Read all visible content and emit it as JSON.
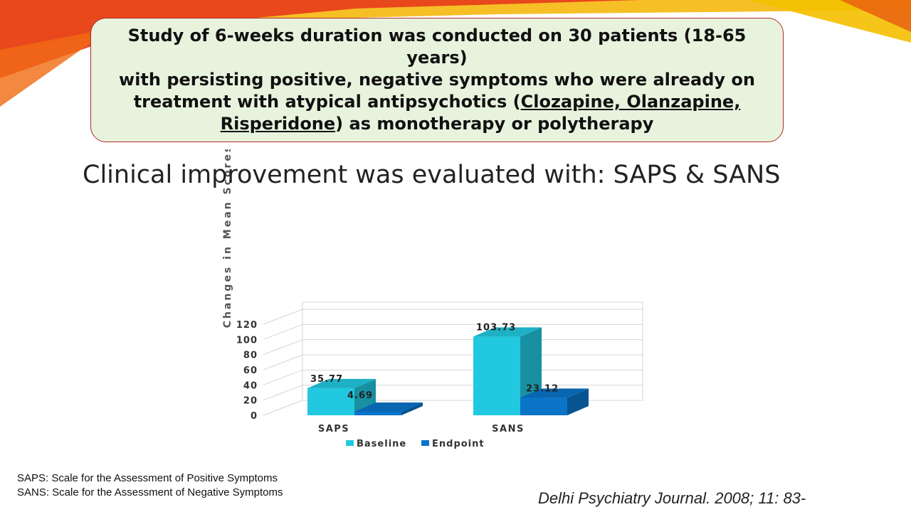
{
  "callout": {
    "line1": "Study of 6-weeks duration was conducted on 30 patients (18-65 years)",
    "line2": "with persisting positive, negative symptoms who were already on",
    "line3_pre": "treatment with atypical antipsychotics (",
    "line3_link": "Clozapine, Olanzapine,",
    "line4_link": "Risperidone",
    "line4_post": ") as monotherapy or polytherapy"
  },
  "subtitle": "Clinical improvement was evaluated with: SAPS & SANS",
  "footnotes": {
    "saps": "SAPS: Scale for the Assessment of Positive Symptoms",
    "sans": "SANS: Scale for the Assessment of Negative Symptoms"
  },
  "citation": "Delhi Psychiatry Journal. 2008; 11: 83-",
  "colors": {
    "baseline": "#22c8e0",
    "endpoint": "#0a74c9",
    "callout_bg": "#e8f3de",
    "callout_border": "#b02a2a"
  },
  "chart_data": {
    "type": "bar",
    "ylabel": "Changes in Mean Scores",
    "xlabel": "",
    "categories": [
      "SAPS",
      "SANS"
    ],
    "series": [
      {
        "name": "Baseline",
        "values": [
          35.77,
          103.73
        ],
        "labels": [
          "35.77",
          "103.73"
        ]
      },
      {
        "name": "Endpoint",
        "values": [
          4.69,
          23.12
        ],
        "labels": [
          "4.69",
          "23.12"
        ]
      }
    ],
    "ylim": [
      0,
      120
    ],
    "yticks": [
      "0",
      "20",
      "40",
      "60",
      "80",
      "100",
      "120"
    ],
    "grid": true,
    "legend": "bottom"
  }
}
